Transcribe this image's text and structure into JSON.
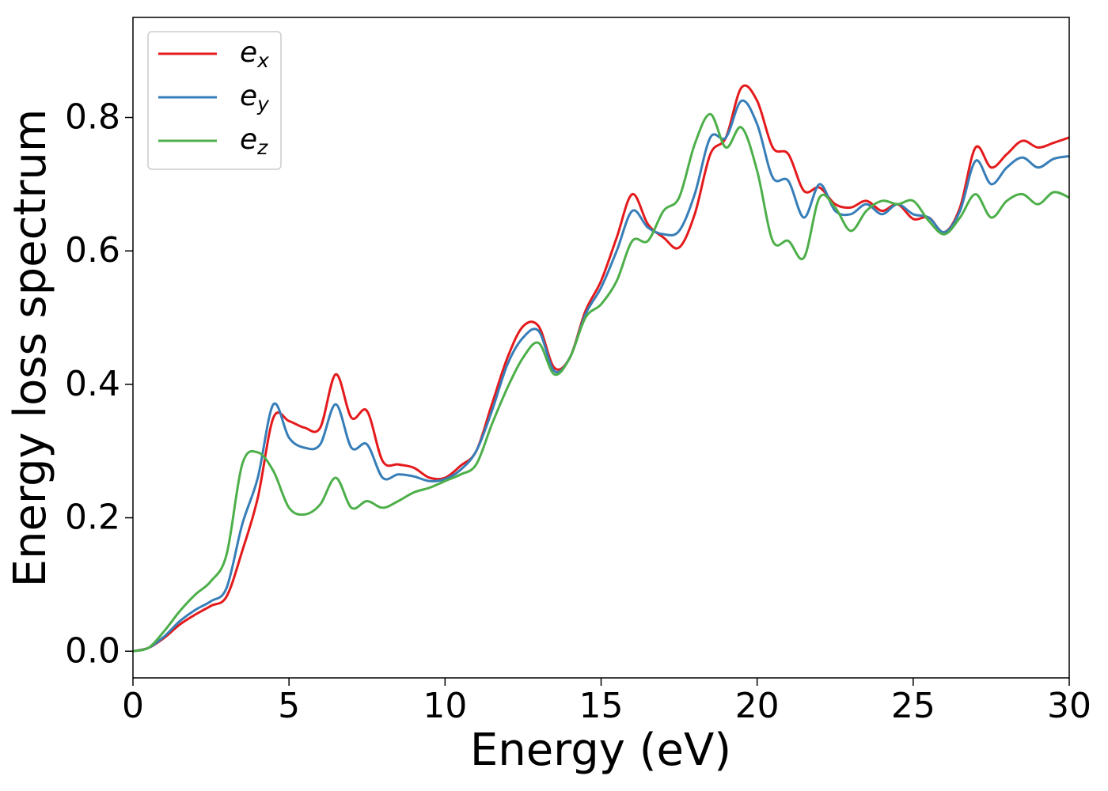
{
  "chart_data": {
    "type": "line",
    "xlabel": "Energy (eV)",
    "ylabel": "Energy loss spectrum",
    "x": [
      0,
      0.5,
      1,
      1.5,
      2,
      2.5,
      3,
      3.5,
      4,
      4.5,
      5,
      5.5,
      6,
      6.5,
      7,
      7.5,
      8,
      8.5,
      9,
      9.5,
      10,
      10.5,
      11,
      11.5,
      12,
      12.5,
      13,
      13.5,
      14,
      14.5,
      15,
      15.5,
      16,
      16.5,
      17,
      17.5,
      18,
      18.5,
      19,
      19.5,
      20,
      20.5,
      21,
      21.5,
      22,
      22.5,
      23,
      23.5,
      24,
      24.5,
      25,
      25.5,
      26,
      26.5,
      27,
      27.5,
      28,
      28.5,
      29,
      29.5,
      30
    ],
    "series": [
      {
        "name": "ex",
        "color": "#e41a1c",
        "values": [
          0,
          0.005,
          0.02,
          0.04,
          0.055,
          0.068,
          0.082,
          0.15,
          0.23,
          0.35,
          0.345,
          0.335,
          0.335,
          0.415,
          0.35,
          0.36,
          0.285,
          0.28,
          0.275,
          0.26,
          0.26,
          0.278,
          0.3,
          0.37,
          0.44,
          0.487,
          0.487,
          0.425,
          0.44,
          0.51,
          0.555,
          0.62,
          0.685,
          0.64,
          0.62,
          0.605,
          0.655,
          0.745,
          0.77,
          0.845,
          0.825,
          0.755,
          0.745,
          0.69,
          0.695,
          0.67,
          0.665,
          0.675,
          0.66,
          0.67,
          0.648,
          0.65,
          0.628,
          0.665,
          0.755,
          0.725,
          0.745,
          0.765,
          0.755,
          0.762,
          0.77
        ]
      },
      {
        "name": "ey",
        "color": "#377eb8",
        "values": [
          0,
          0.005,
          0.022,
          0.045,
          0.062,
          0.075,
          0.095,
          0.19,
          0.26,
          0.37,
          0.32,
          0.305,
          0.31,
          0.37,
          0.305,
          0.31,
          0.26,
          0.265,
          0.262,
          0.255,
          0.258,
          0.272,
          0.3,
          0.36,
          0.43,
          0.47,
          0.48,
          0.42,
          0.44,
          0.505,
          0.545,
          0.6,
          0.66,
          0.635,
          0.625,
          0.63,
          0.685,
          0.77,
          0.77,
          0.825,
          0.79,
          0.71,
          0.705,
          0.65,
          0.7,
          0.66,
          0.655,
          0.67,
          0.655,
          0.67,
          0.655,
          0.65,
          0.628,
          0.66,
          0.735,
          0.7,
          0.725,
          0.74,
          0.725,
          0.738,
          0.742
        ]
      },
      {
        "name": "ez",
        "color": "#4daf4a",
        "values": [
          0,
          0.005,
          0.03,
          0.06,
          0.085,
          0.105,
          0.145,
          0.28,
          0.298,
          0.27,
          0.215,
          0.205,
          0.22,
          0.26,
          0.215,
          0.225,
          0.215,
          0.225,
          0.238,
          0.245,
          0.255,
          0.265,
          0.28,
          0.34,
          0.395,
          0.44,
          0.462,
          0.415,
          0.44,
          0.5,
          0.52,
          0.555,
          0.615,
          0.615,
          0.66,
          0.68,
          0.76,
          0.805,
          0.755,
          0.785,
          0.72,
          0.615,
          0.615,
          0.59,
          0.68,
          0.665,
          0.63,
          0.66,
          0.675,
          0.67,
          0.675,
          0.645,
          0.625,
          0.65,
          0.685,
          0.65,
          0.675,
          0.685,
          0.67,
          0.688,
          0.68
        ]
      }
    ],
    "xlim": [
      0,
      30
    ],
    "xticks": [
      0,
      5,
      10,
      15,
      20,
      25,
      30
    ],
    "ylim": [
      -0.04,
      0.95
    ],
    "yticks": [
      {
        "value": 0,
        "label": "0.0"
      },
      0.2,
      0.4,
      0.6,
      0.8
    ],
    "grid": false,
    "legend": "upper left"
  }
}
